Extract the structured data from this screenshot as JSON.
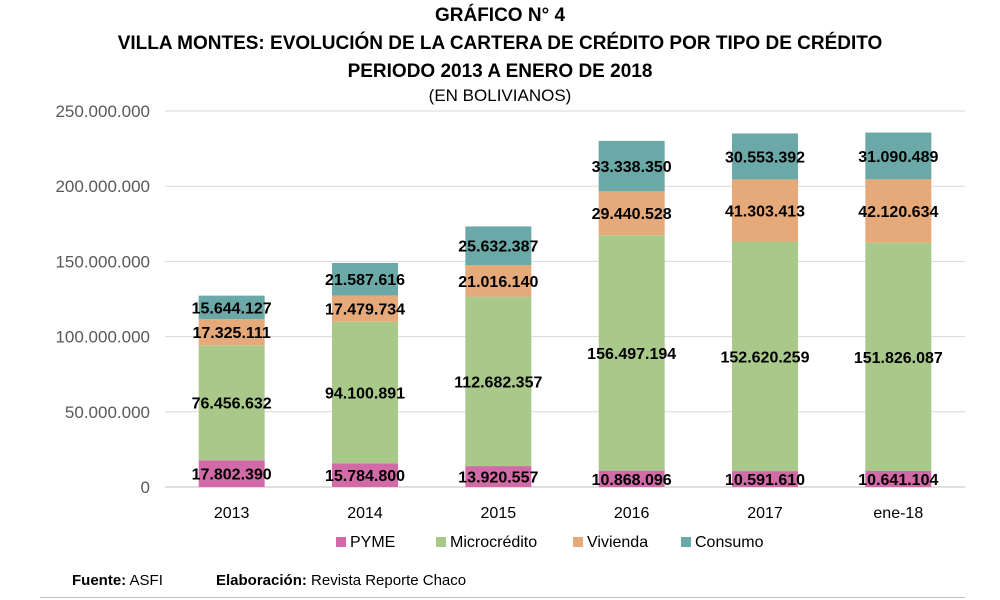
{
  "chart_data": {
    "type": "bar",
    "stacked": true,
    "title": "GRÁFICO N° 4",
    "subtitle_lines": [
      "VILLA MONTES: EVOLUCIÓN DE LA CARTERA DE CRÉDITO POR TIPO DE CRÉDITO",
      "PERIODO 2013 A ENERO DE 2018"
    ],
    "unit_note": "(EN BOLIVIANOS)",
    "categories": [
      "2013",
      "2014",
      "2015",
      "2016",
      "2017",
      "ene-18"
    ],
    "series": [
      {
        "name": "PYME",
        "color": "#d36aa8",
        "values": [
          17802390,
          15784800,
          13920557,
          10868096,
          10591610,
          10641104
        ],
        "labels": [
          "17.802.390",
          "15.784.800",
          "13.920.557",
          "10.868.096",
          "10.591.610",
          "10.641.104"
        ]
      },
      {
        "name": "Microcrédito",
        "color": "#a9c98a",
        "values": [
          76456632,
          94100891,
          112682357,
          156497194,
          152620259,
          151826087
        ],
        "labels": [
          "76.456.632",
          "94.100.891",
          "112.682.357",
          "156.497.194",
          "152.620.259",
          "151.826.087"
        ]
      },
      {
        "name": "Vivienda",
        "color": "#e6a97a",
        "values": [
          17325111,
          17479734,
          21016140,
          29440528,
          41303413,
          42120634
        ],
        "labels": [
          "17.325.111",
          "17.479.734",
          "21.016.140",
          "29.440.528",
          "41.303.413",
          "42.120.634"
        ]
      },
      {
        "name": "Consumo",
        "color": "#6aa9a8",
        "values": [
          15644127,
          21587616,
          25632387,
          33338350,
          30553392,
          31090489
        ],
        "labels": [
          "15.644.127",
          "21.587.616",
          "25.632.387",
          "33.338.350",
          "30.553.392",
          "31.090.489"
        ]
      }
    ],
    "ylim": [
      0,
      250000000
    ],
    "yticks": [
      0,
      50000000,
      100000000,
      150000000,
      200000000,
      250000000
    ],
    "ytick_labels": [
      "0",
      "50.000.000",
      "100.000.000",
      "150.000.000",
      "200.000.000",
      "250.000.000"
    ],
    "grid": true,
    "legend_position": "bottom"
  },
  "footer": {
    "source_label": "Fuente:",
    "source_value": "ASFI",
    "elab_label": "Elaboración:",
    "elab_value": "Revista Reporte Chaco"
  }
}
